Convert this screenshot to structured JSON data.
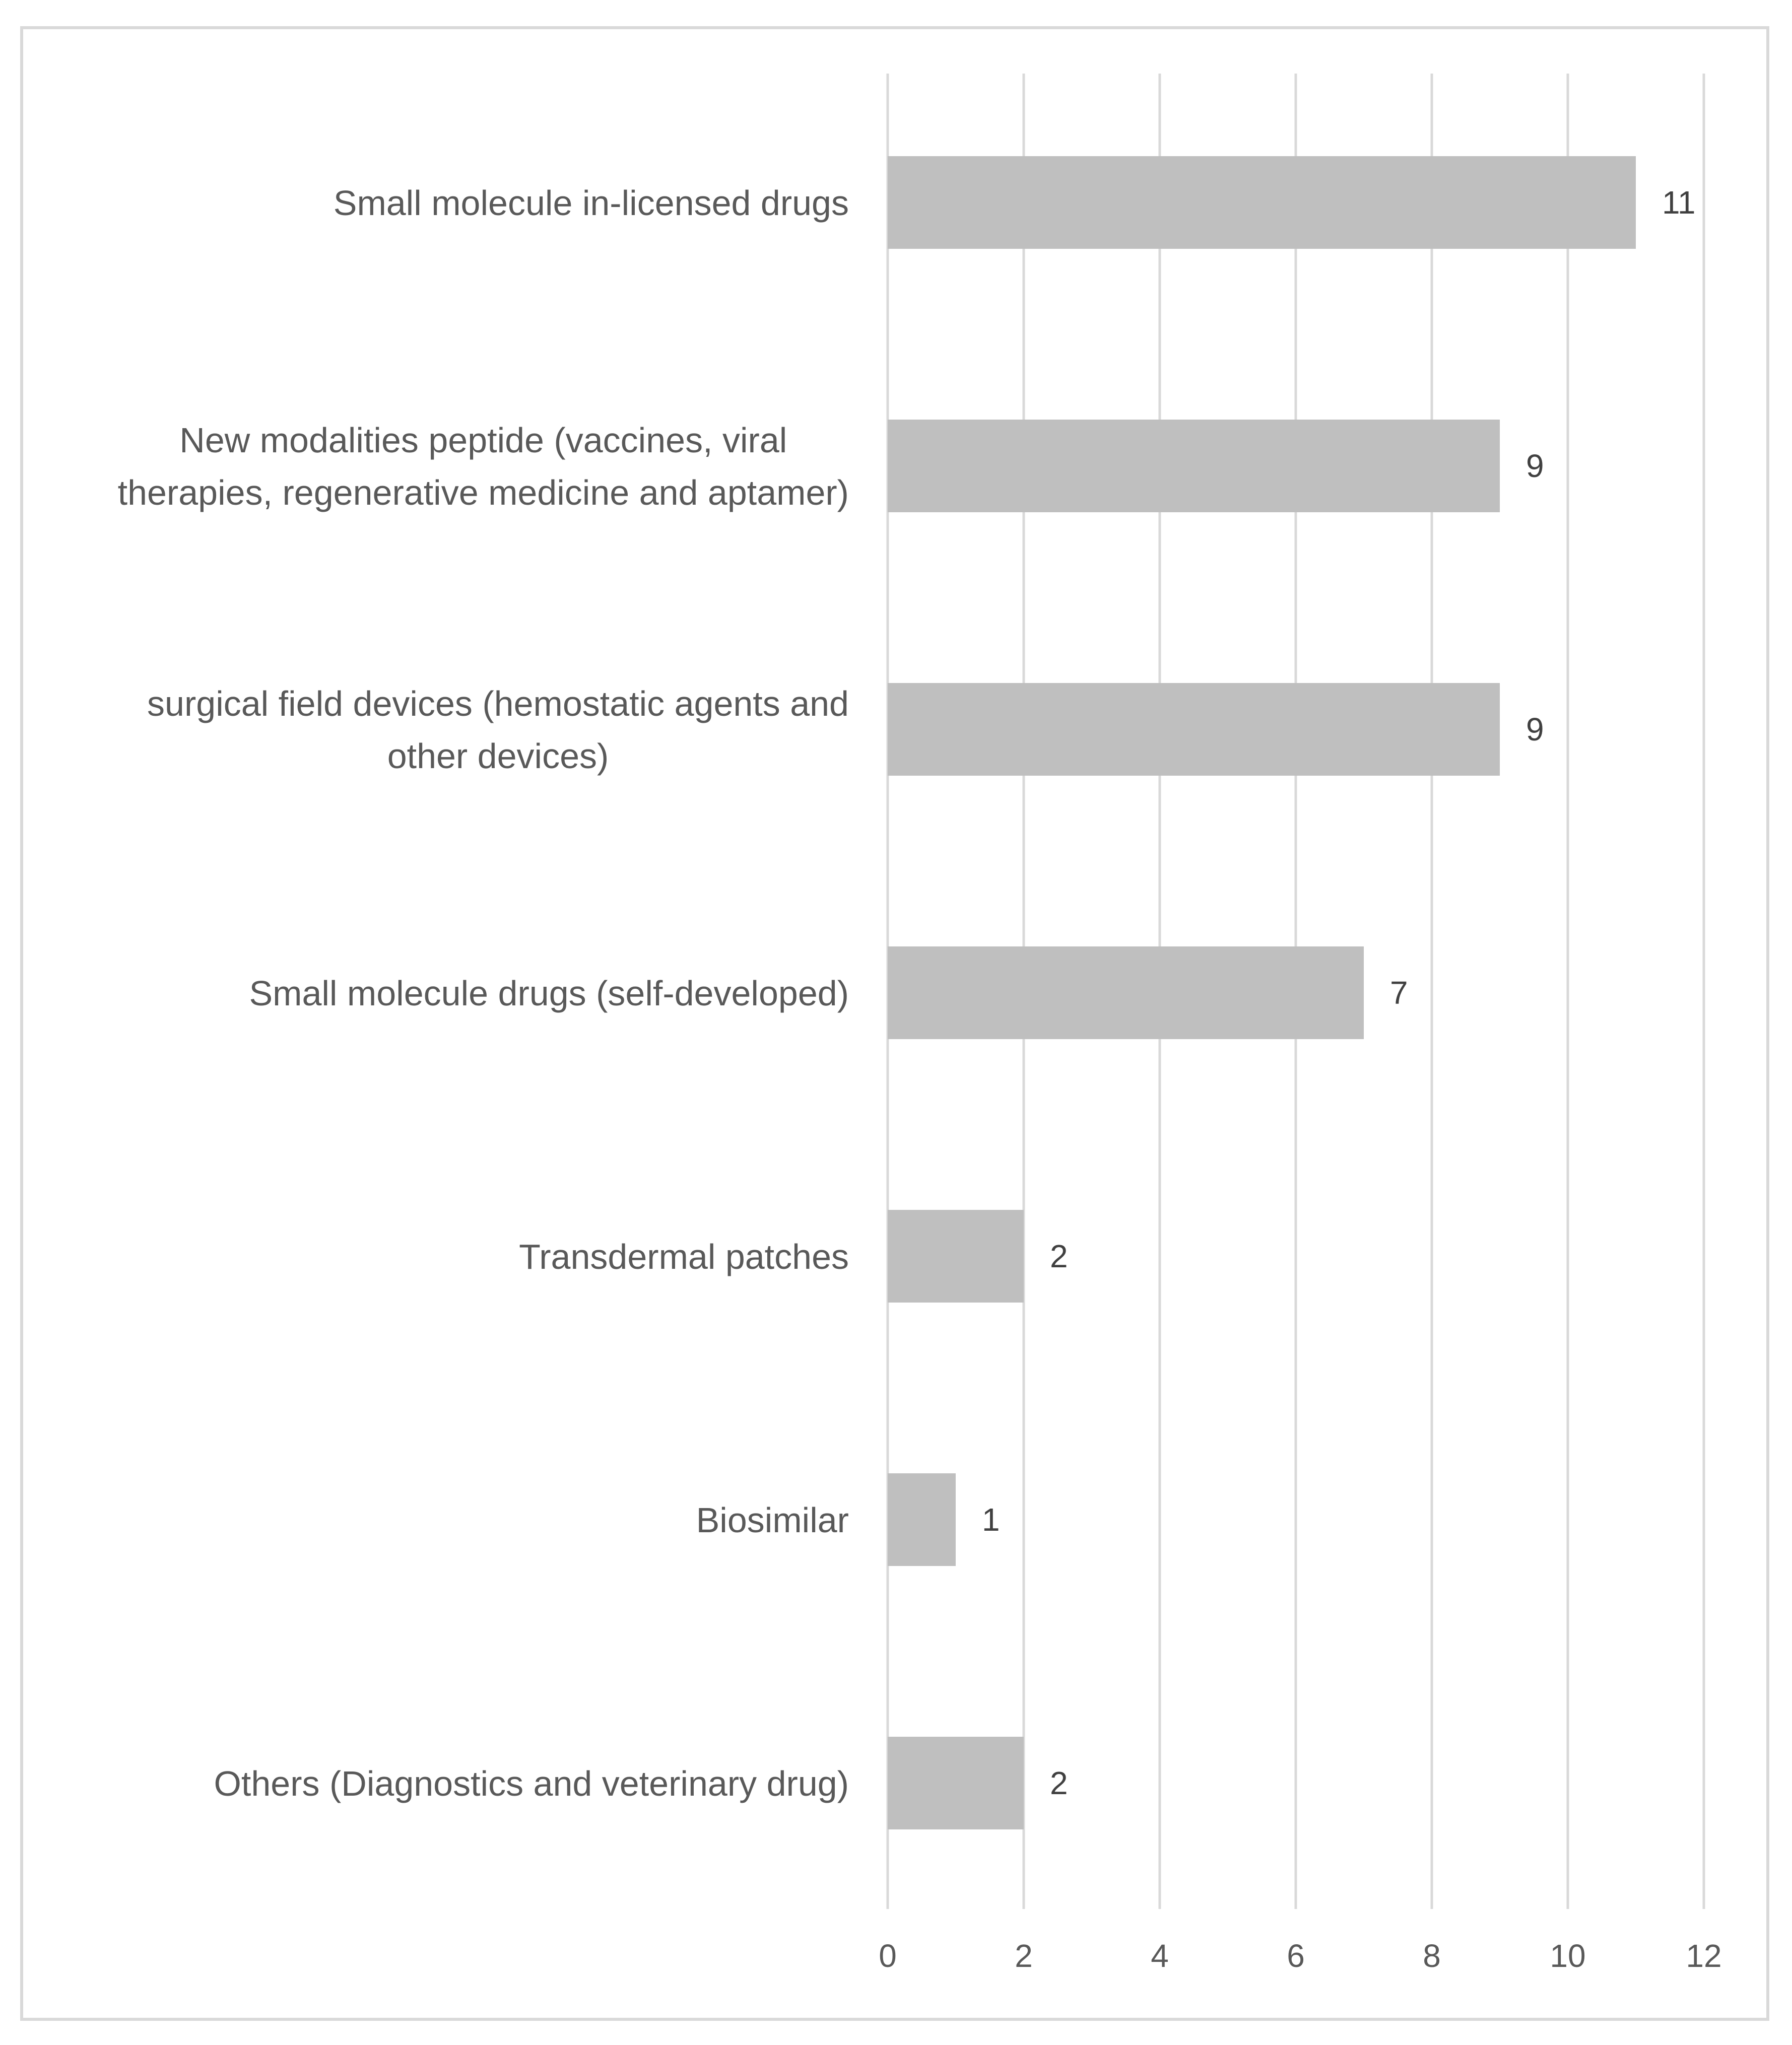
{
  "chart_data": {
    "type": "bar",
    "orientation": "horizontal",
    "title": "",
    "xlabel": "",
    "ylabel": "",
    "xlim": [
      0,
      12
    ],
    "x_ticks": [
      "0",
      "2",
      "4",
      "6",
      "8",
      "10",
      "12"
    ],
    "grid": true,
    "legend": "none",
    "bar_color": "#bfbfbf",
    "grid_color": "#d9d9d9",
    "categories": [
      {
        "lines": [
          "Small molecule in-licensed drugs"
        ],
        "value": 11,
        "value_label": "11"
      },
      {
        "lines": [
          "New modalities peptide (vaccines, viral",
          "therapies, regenerative medicine and aptamer)"
        ],
        "value": 9,
        "value_label": "9"
      },
      {
        "lines": [
          "surgical field devices (hemostatic agents and",
          "other devices)"
        ],
        "value": 9,
        "value_label": "9"
      },
      {
        "lines": [
          "Small molecule drugs (self-developed)"
        ],
        "value": 7,
        "value_label": "7"
      },
      {
        "lines": [
          "Transdermal patches"
        ],
        "value": 2,
        "value_label": "2"
      },
      {
        "lines": [
          "Biosimilar"
        ],
        "value": 1,
        "value_label": "1"
      },
      {
        "lines": [
          "Others (Diagnostics and veterinary drug)"
        ],
        "value": 2,
        "value_label": "2"
      }
    ]
  }
}
